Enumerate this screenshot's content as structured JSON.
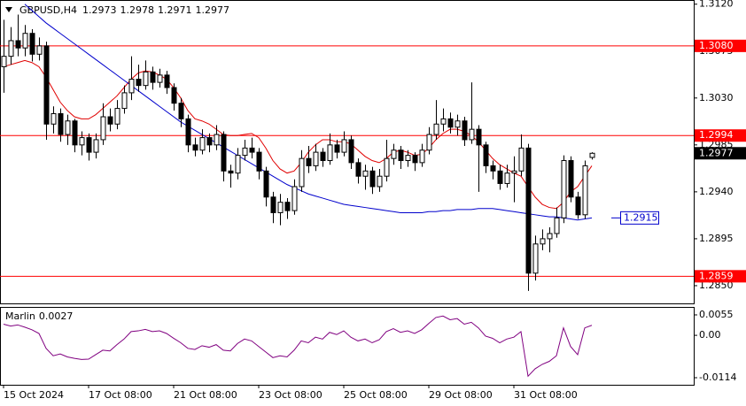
{
  "chart_data": {
    "type": "candlestick",
    "title": "GBPUSD,H4",
    "categories": [
      "15 Oct 2024",
      null,
      null,
      null,
      null,
      null,
      null,
      null,
      null,
      null,
      null,
      null,
      "17 Oct 08:00",
      null,
      null,
      null,
      null,
      null,
      null,
      null,
      null,
      null,
      null,
      null,
      "21 Oct 08:00",
      null,
      null,
      null,
      null,
      null,
      null,
      null,
      null,
      null,
      null,
      null,
      "23 Oct 08:00",
      null,
      null,
      null,
      null,
      null,
      null,
      null,
      null,
      null,
      null,
      null,
      "25 Oct 08:00",
      null,
      null,
      null,
      null,
      null,
      null,
      null,
      null,
      null,
      null,
      null,
      "29 Oct 08:00",
      null,
      null,
      null,
      null,
      null,
      null,
      null,
      null,
      null,
      null,
      null,
      "31 Oct 08:00",
      null,
      null,
      null,
      null,
      null,
      null,
      null,
      null,
      null,
      null,
      null
    ],
    "ohlc": [
      [
        1.306,
        1.3105,
        1.3035,
        1.307
      ],
      [
        1.307,
        1.3098,
        1.3062,
        1.3085
      ],
      [
        1.3085,
        1.311,
        1.307,
        1.3078
      ],
      [
        1.3078,
        1.31,
        1.307,
        1.3092
      ],
      [
        1.3092,
        1.3096,
        1.3065,
        1.3072
      ],
      [
        1.3072,
        1.3088,
        1.3066,
        1.308
      ],
      [
        1.308,
        1.3084,
        1.299,
        1.3005
      ],
      [
        1.3005,
        1.3022,
        1.2996,
        1.3015
      ],
      [
        1.3015,
        1.302,
        1.2988,
        1.2995
      ],
      [
        1.2995,
        1.3014,
        1.2985,
        1.3008
      ],
      [
        1.3008,
        1.301,
        1.2978,
        1.2985
      ],
      [
        1.2985,
        1.2998,
        1.2975,
        1.2992
      ],
      [
        1.2992,
        1.2996,
        1.297,
        1.2978
      ],
      [
        1.2978,
        1.2996,
        1.2972,
        1.299
      ],
      [
        1.299,
        1.3025,
        1.2985,
        1.3012
      ],
      [
        1.3012,
        1.302,
        1.2998,
        1.3005
      ],
      [
        1.3005,
        1.3028,
        1.3,
        1.302
      ],
      [
        1.302,
        1.3042,
        1.3015,
        1.3035
      ],
      [
        1.3035,
        1.307,
        1.3028,
        1.3048
      ],
      [
        1.3048,
        1.3062,
        1.3036,
        1.3042
      ],
      [
        1.3042,
        1.3066,
        1.3038,
        1.3055
      ],
      [
        1.3055,
        1.306,
        1.3038,
        1.3045
      ],
      [
        1.3045,
        1.3058,
        1.304,
        1.3052
      ],
      [
        1.3052,
        1.3056,
        1.3034,
        1.304
      ],
      [
        1.304,
        1.3044,
        1.3018,
        1.3025
      ],
      [
        1.3025,
        1.303,
        1.3002,
        1.301
      ],
      [
        1.301,
        1.3014,
        1.2978,
        1.2985
      ],
      [
        1.2985,
        1.2992,
        1.2974,
        1.298
      ],
      [
        1.298,
        1.3,
        1.2976,
        1.2992
      ],
      [
        1.2992,
        1.2996,
        1.2978,
        1.2985
      ],
      [
        1.2985,
        1.3004,
        1.298,
        1.2995
      ],
      [
        1.2995,
        1.2998,
        1.295,
        1.296
      ],
      [
        1.296,
        1.2966,
        1.2944,
        1.2958
      ],
      [
        1.2958,
        1.2982,
        1.2952,
        1.2975
      ],
      [
        1.2975,
        1.299,
        1.297,
        1.2982
      ],
      [
        1.2982,
        1.2992,
        1.2972,
        1.2978
      ],
      [
        1.2978,
        1.2982,
        1.2952,
        1.296
      ],
      [
        1.296,
        1.2964,
        1.2926,
        1.2935
      ],
      [
        1.2935,
        1.294,
        1.291,
        1.292
      ],
      [
        1.292,
        1.2938,
        1.2908,
        1.293
      ],
      [
        1.293,
        1.2934,
        1.2914,
        1.2922
      ],
      [
        1.2922,
        1.2952,
        1.2918,
        1.2945
      ],
      [
        1.2945,
        1.298,
        1.294,
        1.2972
      ],
      [
        1.2972,
        1.2984,
        1.2958,
        1.2965
      ],
      [
        1.2965,
        1.2986,
        1.296,
        1.2978
      ],
      [
        1.2978,
        1.2982,
        1.2964,
        1.297
      ],
      [
        1.297,
        1.2996,
        1.2966,
        1.2985
      ],
      [
        1.2985,
        1.299,
        1.2972,
        1.2978
      ],
      [
        1.2978,
        1.2998,
        1.2974,
        1.299
      ],
      [
        1.299,
        1.2994,
        1.2962,
        1.2968
      ],
      [
        1.2968,
        1.2972,
        1.2948,
        1.2955
      ],
      [
        1.2955,
        1.2966,
        1.2942,
        1.296
      ],
      [
        1.296,
        1.2964,
        1.2938,
        1.2945
      ],
      [
        1.2945,
        1.2962,
        1.294,
        1.2955
      ],
      [
        1.2955,
        1.299,
        1.295,
        1.2972
      ],
      [
        1.2972,
        1.2986,
        1.2966,
        1.298
      ],
      [
        1.298,
        1.2984,
        1.2962,
        1.297
      ],
      [
        1.297,
        1.298,
        1.2964,
        1.2975
      ],
      [
        1.2975,
        1.2978,
        1.296,
        1.2968
      ],
      [
        1.2968,
        1.2986,
        1.2964,
        1.298
      ],
      [
        1.298,
        1.3002,
        1.2976,
        1.2995
      ],
      [
        1.2995,
        1.3028,
        1.299,
        1.3005
      ],
      [
        1.3005,
        1.302,
        1.2998,
        1.301
      ],
      [
        1.301,
        1.3016,
        1.2996,
        1.3002
      ],
      [
        1.3002,
        1.3014,
        1.2994,
        1.3008
      ],
      [
        1.3008,
        1.3012,
        1.2984,
        1.299
      ],
      [
        1.299,
        1.3045,
        1.2986,
        1.3
      ],
      [
        1.3,
        1.3004,
        1.294,
        1.2985
      ],
      [
        1.2985,
        1.2988,
        1.2958,
        1.2965
      ],
      [
        1.2965,
        1.297,
        1.2952,
        1.296
      ],
      [
        1.296,
        1.2966,
        1.2942,
        1.2948
      ],
      [
        1.2948,
        1.2966,
        1.2944,
        1.2958
      ],
      [
        1.2958,
        1.2974,
        1.293,
        1.296
      ],
      [
        1.296,
        1.2995,
        1.2955,
        1.2982
      ],
      [
        1.2982,
        1.2986,
        1.2845,
        1.2862
      ],
      [
        1.2862,
        1.2898,
        1.2855,
        1.289
      ],
      [
        1.289,
        1.2904,
        1.2884,
        1.2895
      ],
      [
        1.2895,
        1.2906,
        1.2882,
        1.29
      ],
      [
        1.29,
        1.2925,
        1.2896,
        1.2915
      ],
      [
        1.2915,
        1.2975,
        1.291,
        1.297
      ],
      [
        1.297,
        1.2974,
        1.293,
        1.2935
      ],
      [
        1.2935,
        1.294,
        1.2914,
        1.2918
      ],
      [
        1.2918,
        1.297,
        1.2914,
        1.2965
      ],
      [
        1.2973,
        1.2978,
        1.2971,
        1.2977
      ]
    ],
    "lines": [
      {
        "color": "#e00000",
        "values": [
          1.306,
          1.3062,
          1.3064,
          1.3066,
          1.3064,
          1.306,
          1.305,
          1.3038,
          1.3026,
          1.3018,
          1.3012,
          1.301,
          1.301,
          1.3014,
          1.302,
          1.3026,
          1.3032,
          1.304,
          1.3048,
          1.3054,
          1.3056,
          1.3055,
          1.3052,
          1.3048,
          1.304,
          1.303,
          1.3018,
          1.301,
          1.3008,
          1.3005,
          1.3,
          1.2995,
          1.2994,
          1.2994,
          1.2995,
          1.2996,
          1.2992,
          1.2982,
          1.297,
          1.2962,
          1.2958,
          1.296,
          1.2968,
          1.2978,
          1.2985,
          1.299,
          1.299,
          1.2988,
          1.2988,
          1.2986,
          1.298,
          1.2974,
          1.297,
          1.2968,
          1.2972,
          1.2978,
          1.298,
          1.2978,
          1.2975,
          1.2976,
          1.2982,
          1.299,
          1.2996,
          1.3,
          1.3,
          1.2998,
          1.2994,
          1.2988,
          1.298,
          1.2972,
          1.2966,
          1.2962,
          1.2958,
          1.2955,
          1.2945,
          1.2935,
          1.2928,
          1.2925,
          1.2924,
          1.293,
          1.294,
          1.2945,
          1.2955,
          1.2965
        ]
      },
      {
        "color": "#0000cc",
        "values": [
          null,
          null,
          null,
          1.312,
          1.3114,
          1.3108,
          1.3102,
          1.3097,
          1.3092,
          1.3087,
          1.3082,
          1.3077,
          1.3072,
          1.3067,
          1.3062,
          1.3057,
          1.3052,
          1.3047,
          1.3042,
          1.3037,
          1.3032,
          1.3027,
          1.3022,
          1.3017,
          1.3012,
          1.3007,
          1.3003,
          1.2999,
          1.2995,
          1.2991,
          1.2987,
          1.2983,
          1.2979,
          1.2975,
          1.2971,
          1.2967,
          1.2963,
          1.2959,
          1.2955,
          1.2951,
          1.2947,
          1.2944,
          1.2941,
          1.2938,
          1.2936,
          1.2934,
          1.2932,
          1.293,
          1.2928,
          1.2927,
          1.2926,
          1.2925,
          1.2924,
          1.2923,
          1.2922,
          1.2921,
          1.292,
          1.292,
          1.292,
          1.292,
          1.2921,
          1.2921,
          1.2922,
          1.2922,
          1.2923,
          1.2923,
          1.2923,
          1.2924,
          1.2924,
          1.2924,
          1.2923,
          1.2922,
          1.2921,
          1.292,
          1.2919,
          1.2918,
          1.2917,
          1.2916,
          1.2916,
          1.2915,
          1.2914,
          1.2913,
          1.2914,
          1.2915
        ]
      }
    ],
    "levels": [
      {
        "value": 1.308,
        "label": "1.3080"
      },
      {
        "value": 1.2994,
        "label": "1.2994"
      },
      {
        "value": 1.2859,
        "label": "1.2859"
      }
    ],
    "level_color": "#ff0000",
    "ylim": [
      1.2833,
      1.3124
    ],
    "yticks": [
      {
        "value": 1.312,
        "label": "1.3120"
      },
      {
        "value": 1.3075,
        "label": "1.3075"
      },
      {
        "value": 1.303,
        "label": "1.3030"
      },
      {
        "value": 1.2985,
        "label": "1.2985"
      },
      {
        "value": 1.294,
        "label": "1.2940"
      },
      {
        "value": 1.2895,
        "label": "1.2895"
      },
      {
        "value": 1.285,
        "label": "1.2850"
      }
    ],
    "indicator": {
      "name": "Marlin",
      "color": "#800080",
      "ylim": [
        -0.0133,
        0.0074
      ],
      "yticks": [
        0.0055,
        {
          "value": 0,
          "label": "0.00"
        },
        -0.0114
      ],
      "values": [
        0.003,
        0.0025,
        0.0028,
        0.0022,
        0.0015,
        0.0005,
        -0.0035,
        -0.0055,
        -0.005,
        -0.0058,
        -0.0062,
        -0.0065,
        -0.0064,
        -0.0052,
        -0.004,
        -0.0042,
        -0.0025,
        -0.001,
        0.001,
        0.0012,
        0.0016,
        0.001,
        0.0012,
        0.0005,
        -0.0008,
        -0.002,
        -0.0035,
        -0.0038,
        -0.0028,
        -0.0032,
        -0.0025,
        -0.004,
        -0.0042,
        -0.0022,
        -0.001,
        -0.0015,
        -0.003,
        -0.0045,
        -0.006,
        -0.0055,
        -0.0058,
        -0.004,
        -0.0015,
        -0.002,
        -0.0005,
        -0.001,
        0.0008,
        0.0002,
        0.0012,
        -0.0005,
        -0.0015,
        -0.001,
        -0.002,
        -0.0012,
        0.001,
        0.0018,
        0.0008,
        0.0012,
        0.0005,
        0.0015,
        0.0032,
        0.0048,
        0.0052,
        0.0042,
        0.0045,
        0.003,
        0.0035,
        0.002,
        -0.0002,
        -0.0008,
        -0.002,
        -0.001,
        -0.0005,
        0.001,
        -0.011,
        -0.009,
        -0.0078,
        -0.007,
        -0.0055,
        0.002,
        -0.003,
        -0.0052,
        0.002,
        0.0027
      ]
    }
  }
}
